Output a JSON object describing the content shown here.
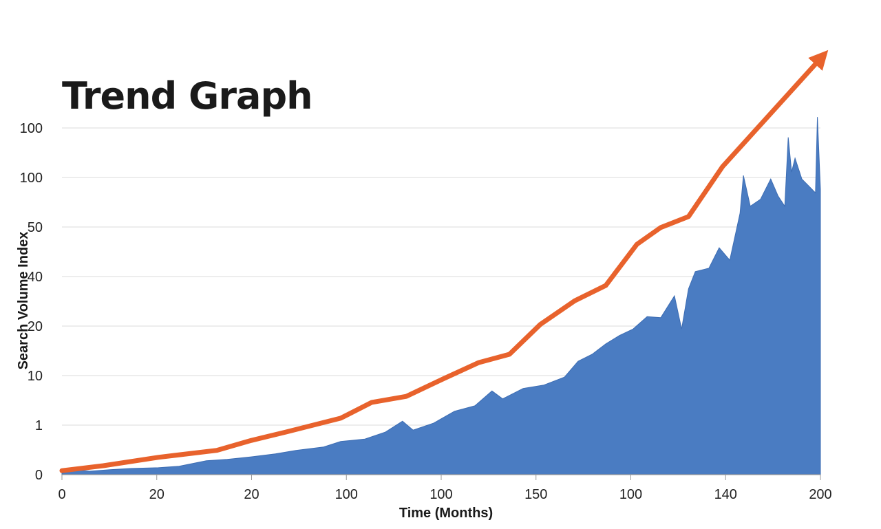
{
  "chart_data": {
    "type": "area",
    "title": "Trend Graph",
    "xlabel": "Time (Months)",
    "ylabel": "Search Volume Index",
    "x_tick_labels": [
      "0",
      "20",
      "20",
      "100",
      "100",
      "150",
      "100",
      "140",
      "200"
    ],
    "y_tick_labels": [
      "0",
      "1",
      "10",
      "20",
      "40",
      "50",
      "100",
      "100"
    ],
    "xlim": [
      0,
      200
    ],
    "ylim_tick_index": [
      0,
      7
    ],
    "grid": true,
    "legend": "none",
    "series": [
      {
        "type": "area",
        "color": "#4a7cc2",
        "x": [
          0,
          3.6,
          7.3,
          12.7,
          18.2,
          25.4,
          30.9,
          38.1,
          43.6,
          49.9,
          56.3,
          61.7,
          69.0,
          73.5,
          79.9,
          85.3,
          89.8,
          92.6,
          98.0,
          103.5,
          108.9,
          113.4,
          116.2,
          121.6,
          127.1,
          132.5,
          136.1,
          139.8,
          143.4,
          147.0,
          150.6,
          154.3,
          157.9,
          161.5,
          163.4,
          165.2,
          167.0,
          170.6,
          173.3,
          176.1,
          178.8,
          179.7,
          181.5,
          184.2,
          186.9,
          188.8,
          190.6,
          191.5,
          192.4,
          193.3,
          195.1,
          196.9,
          198.7,
          199.2,
          200
        ],
        "y": [
          0.03,
          0.1,
          0.07,
          0.1,
          0.125,
          0.14,
          0.17,
          0.28,
          0.31,
          0.36,
          0.42,
          0.49,
          0.56,
          0.67,
          0.72,
          0.86,
          1.08,
          0.9,
          1.04,
          1.28,
          1.39,
          1.69,
          1.53,
          1.74,
          1.81,
          1.97,
          2.29,
          2.43,
          2.64,
          2.81,
          2.94,
          3.19,
          3.17,
          3.61,
          2.94,
          3.75,
          4.1,
          4.17,
          4.58,
          4.33,
          5.28,
          6.04,
          5.42,
          5.56,
          5.97,
          5.63,
          5.42,
          6.81,
          6.11,
          6.39,
          5.97,
          5.83,
          5.69,
          7.22,
          5.76
        ]
      },
      {
        "type": "line",
        "color": "#e8622c",
        "arrow": true,
        "x": [
          0,
          10.9,
          25.4,
          40.8,
          49.9,
          59.0,
          73.5,
          81.7,
          90.8,
          100.7,
          109.8,
          118.0,
          126.1,
          135.2,
          143.4,
          151.6,
          157.9,
          165.2,
          174.2,
          200
        ],
        "y": [
          0.08,
          0.18,
          0.35,
          0.49,
          0.69,
          0.86,
          1.14,
          1.46,
          1.58,
          1.94,
          2.26,
          2.43,
          3.03,
          3.51,
          3.82,
          4.65,
          4.99,
          5.21,
          6.22,
          8.4
        ]
      }
    ]
  }
}
